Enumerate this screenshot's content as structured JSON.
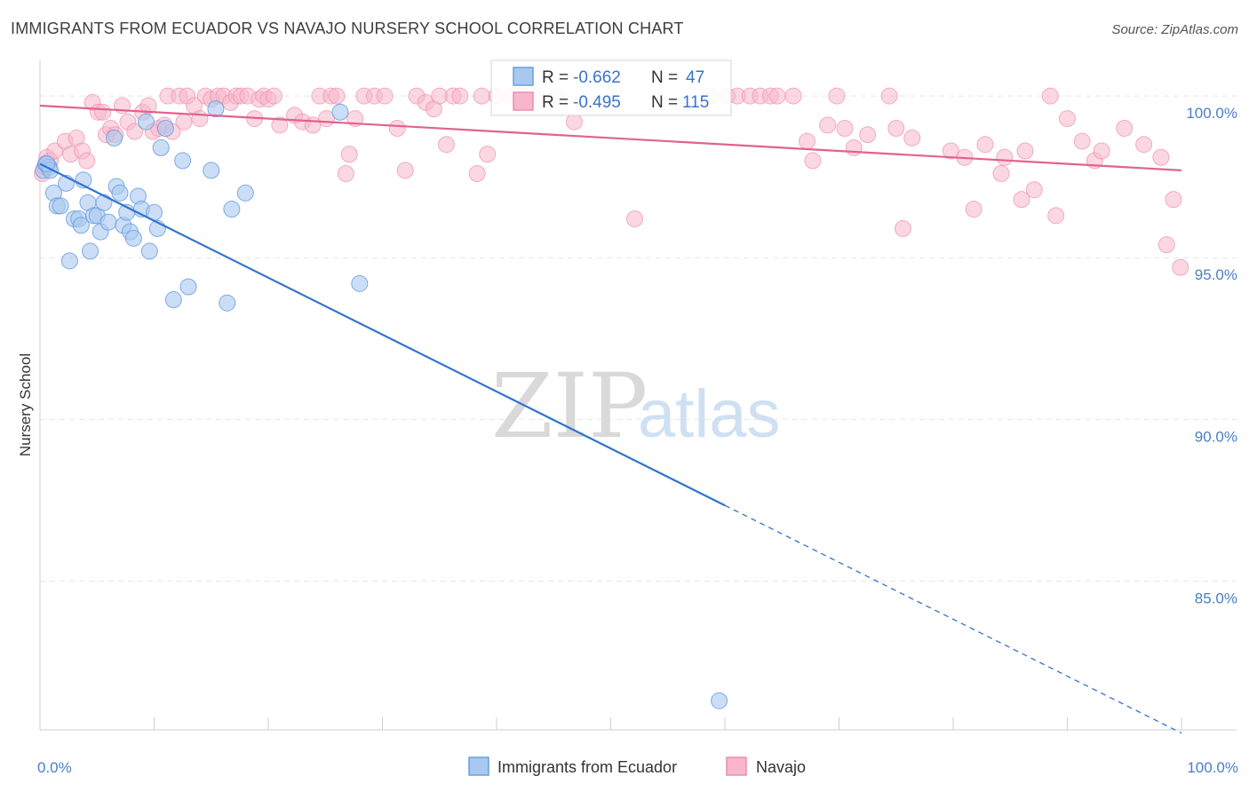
{
  "title": "IMMIGRANTS FROM ECUADOR VS NAVAJO NURSERY SCHOOL CORRELATION CHART",
  "source": "Source: ZipAtlas.com",
  "watermark": {
    "zip": "ZIP",
    "atlas": "atlas"
  },
  "colors": {
    "blue_fill": "#a9c8f0",
    "blue_stroke": "#6b9ee0",
    "blue_line": "#2f74d0",
    "pink_fill": "#f7b6cb",
    "pink_stroke": "#ec8fae",
    "pink_line": "#e0628f",
    "grid": "#e6e6e6",
    "tick_text": "#4a7fc8"
  },
  "stats_box": {
    "rows": [
      {
        "r_label": "R =",
        "r_value": "-0.662",
        "n_label": "N =",
        "n_value": "47"
      },
      {
        "r_label": "R =",
        "r_value": "-0.495",
        "n_label": "N =",
        "n_value": "115"
      }
    ]
  },
  "chart_data": {
    "type": "scatter",
    "title": "IMMIGRANTS FROM ECUADOR VS NAVAJO NURSERY SCHOOL CORRELATION CHART",
    "xlabel": "",
    "ylabel": "Nursery School",
    "xlim": [
      0,
      100
    ],
    "ylim": [
      80.4,
      101.1
    ],
    "x_ticks": [
      "0.0%",
      "100.0%"
    ],
    "y_ticks": [
      {
        "value": 100,
        "label": "100.0%"
      },
      {
        "value": 95,
        "label": "95.0%"
      },
      {
        "value": 90,
        "label": "90.0%"
      },
      {
        "value": 85,
        "label": "85.0%"
      }
    ],
    "grid": true,
    "legend_position": "bottom-center",
    "series": [
      {
        "name": "Immigrants from Ecuador",
        "color": "#a9c8f0",
        "trend": {
          "x0": 0,
          "y0": 97.9,
          "x1": 100,
          "y1": 80.3,
          "solid_until_x": 60
        },
        "points": [
          [
            0.3,
            97.7
          ],
          [
            0.5,
            97.9
          ],
          [
            0.8,
            97.8
          ],
          [
            1.2,
            97.0
          ],
          [
            1.5,
            96.6
          ],
          [
            1.8,
            96.6
          ],
          [
            2.3,
            97.3
          ],
          [
            2.6,
            94.9
          ],
          [
            3.0,
            96.2
          ],
          [
            3.4,
            96.2
          ],
          [
            3.6,
            96.0
          ],
          [
            3.8,
            97.4
          ],
          [
            4.2,
            96.7
          ],
          [
            4.4,
            95.2
          ],
          [
            4.7,
            96.3
          ],
          [
            5.0,
            96.3
          ],
          [
            5.3,
            95.8
          ],
          [
            5.6,
            96.7
          ],
          [
            6.0,
            96.1
          ],
          [
            6.7,
            97.2
          ],
          [
            7.0,
            97.0
          ],
          [
            7.3,
            96.0
          ],
          [
            7.6,
            96.4
          ],
          [
            7.9,
            95.8
          ],
          [
            8.2,
            95.6
          ],
          [
            8.6,
            96.9
          ],
          [
            8.9,
            96.5
          ],
          [
            9.3,
            99.2
          ],
          [
            9.6,
            95.2
          ],
          [
            10.0,
            96.4
          ],
          [
            10.3,
            95.9
          ],
          [
            10.6,
            98.4
          ],
          [
            11.0,
            99.0
          ],
          [
            11.7,
            93.7
          ],
          [
            12.5,
            98.0
          ],
          [
            13.0,
            94.1
          ],
          [
            15.0,
            97.7
          ],
          [
            15.4,
            99.6
          ],
          [
            16.4,
            93.6
          ],
          [
            16.8,
            96.5
          ],
          [
            18.0,
            97.0
          ],
          [
            6.5,
            98.7
          ],
          [
            26.3,
            99.5
          ],
          [
            28.0,
            94.2
          ],
          [
            59.5,
            81.3
          ],
          [
            0.9,
            97.7
          ],
          [
            0.6,
            97.9
          ]
        ]
      },
      {
        "name": "Navajo",
        "color": "#f7b6cb",
        "trend": {
          "x0": 0,
          "y0": 99.7,
          "x1": 100,
          "y1": 97.7
        },
        "points": [
          [
            0.2,
            97.6
          ],
          [
            0.4,
            97.8
          ],
          [
            0.6,
            98.1
          ],
          [
            0.9,
            98.0
          ],
          [
            1.3,
            98.3
          ],
          [
            2.2,
            98.6
          ],
          [
            2.7,
            98.2
          ],
          [
            3.2,
            98.7
          ],
          [
            3.7,
            98.3
          ],
          [
            4.1,
            98.0
          ],
          [
            4.6,
            99.8
          ],
          [
            5.1,
            99.5
          ],
          [
            5.5,
            99.5
          ],
          [
            5.8,
            98.8
          ],
          [
            6.2,
            99.0
          ],
          [
            6.6,
            98.8
          ],
          [
            7.2,
            99.7
          ],
          [
            7.7,
            99.2
          ],
          [
            8.3,
            98.9
          ],
          [
            9.0,
            99.5
          ],
          [
            9.5,
            99.7
          ],
          [
            9.9,
            98.9
          ],
          [
            10.4,
            99.0
          ],
          [
            10.9,
            99.1
          ],
          [
            11.2,
            100.0
          ],
          [
            11.6,
            98.9
          ],
          [
            12.2,
            100.0
          ],
          [
            12.6,
            99.2
          ],
          [
            12.9,
            100.0
          ],
          [
            13.5,
            99.7
          ],
          [
            14.0,
            99.3
          ],
          [
            14.5,
            100.0
          ],
          [
            15.0,
            99.9
          ],
          [
            15.6,
            100.0
          ],
          [
            16.1,
            100.0
          ],
          [
            16.7,
            99.8
          ],
          [
            17.2,
            100.0
          ],
          [
            17.6,
            100.0
          ],
          [
            18.2,
            100.0
          ],
          [
            18.8,
            99.3
          ],
          [
            19.2,
            99.9
          ],
          [
            19.6,
            100.0
          ],
          [
            20.0,
            99.9
          ],
          [
            20.5,
            100.0
          ],
          [
            21.0,
            99.1
          ],
          [
            22.3,
            99.4
          ],
          [
            23.0,
            99.2
          ],
          [
            23.9,
            99.1
          ],
          [
            24.5,
            100.0
          ],
          [
            25.1,
            99.3
          ],
          [
            25.5,
            100.0
          ],
          [
            26.0,
            100.0
          ],
          [
            26.8,
            97.6
          ],
          [
            27.1,
            98.2
          ],
          [
            27.6,
            99.3
          ],
          [
            28.4,
            100.0
          ],
          [
            29.3,
            100.0
          ],
          [
            30.2,
            100.0
          ],
          [
            31.3,
            99.0
          ],
          [
            32.0,
            97.7
          ],
          [
            33.0,
            100.0
          ],
          [
            33.8,
            99.8
          ],
          [
            34.5,
            99.6
          ],
          [
            35.0,
            100.0
          ],
          [
            35.6,
            98.5
          ],
          [
            36.2,
            100.0
          ],
          [
            36.8,
            100.0
          ],
          [
            38.3,
            97.6
          ],
          [
            38.7,
            100.0
          ],
          [
            39.2,
            98.2
          ],
          [
            40.0,
            100.0
          ],
          [
            41.4,
            100.0
          ],
          [
            42.1,
            100.0
          ],
          [
            43.5,
            100.0
          ],
          [
            45.3,
            100.0
          ],
          [
            46.8,
            99.2
          ],
          [
            52.1,
            96.2
          ],
          [
            58.7,
            100.0
          ],
          [
            60.2,
            100.0
          ],
          [
            61.1,
            100.0
          ],
          [
            62.2,
            100.0
          ],
          [
            63.1,
            100.0
          ],
          [
            64.0,
            100.0
          ],
          [
            64.6,
            100.0
          ],
          [
            66.0,
            100.0
          ],
          [
            67.2,
            98.6
          ],
          [
            67.7,
            98.0
          ],
          [
            69.0,
            99.1
          ],
          [
            69.8,
            100.0
          ],
          [
            70.5,
            99.0
          ],
          [
            71.3,
            98.4
          ],
          [
            72.5,
            98.8
          ],
          [
            74.4,
            100.0
          ],
          [
            75.6,
            95.9
          ],
          [
            75.0,
            99.0
          ],
          [
            76.4,
            98.7
          ],
          [
            79.8,
            98.3
          ],
          [
            81.0,
            98.1
          ],
          [
            81.8,
            96.5
          ],
          [
            82.8,
            98.5
          ],
          [
            84.2,
            97.6
          ],
          [
            84.5,
            98.1
          ],
          [
            86.0,
            96.8
          ],
          [
            86.3,
            98.3
          ],
          [
            87.1,
            97.1
          ],
          [
            88.5,
            100.0
          ],
          [
            89.0,
            96.3
          ],
          [
            90.0,
            99.3
          ],
          [
            91.3,
            98.6
          ],
          [
            92.4,
            98.0
          ],
          [
            93.0,
            98.3
          ],
          [
            95.0,
            99.0
          ],
          [
            96.7,
            98.5
          ],
          [
            98.2,
            98.1
          ],
          [
            98.7,
            95.4
          ],
          [
            99.3,
            96.8
          ],
          [
            99.9,
            94.7
          ]
        ]
      }
    ]
  },
  "legend": {
    "items": [
      {
        "label": "Immigrants from Ecuador"
      },
      {
        "label": "Navajo"
      }
    ]
  }
}
